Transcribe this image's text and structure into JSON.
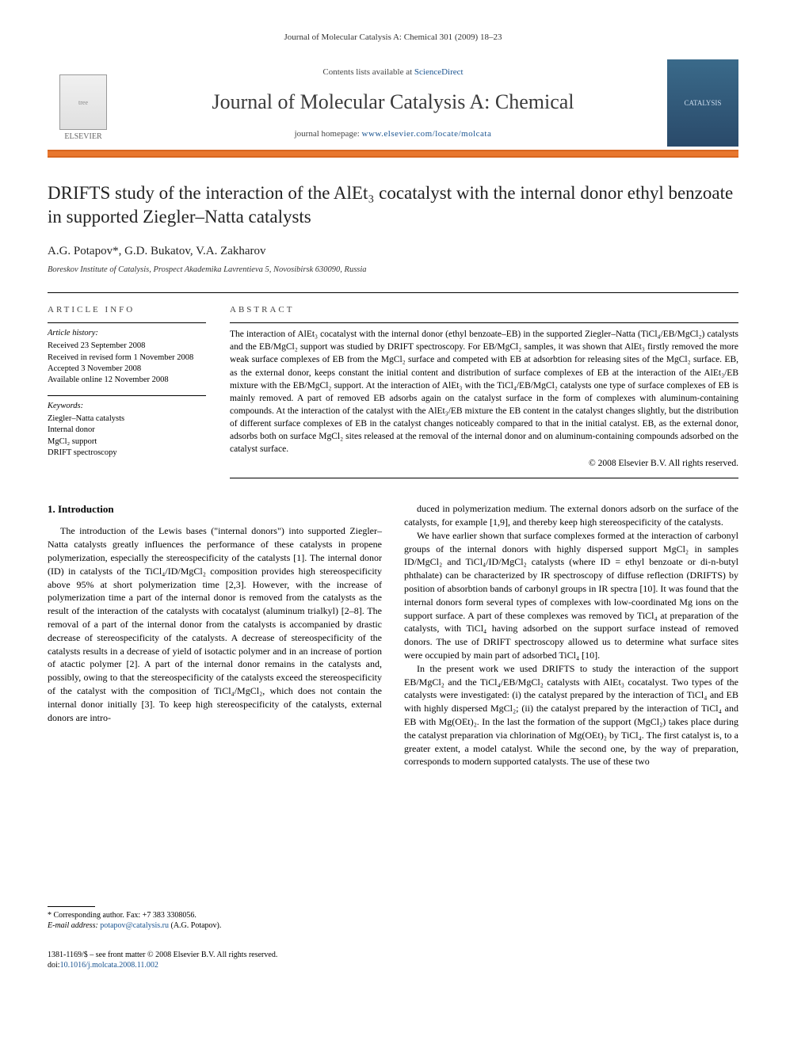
{
  "header": {
    "journal_ref": "Journal of Molecular Catalysis A: Chemical 301 (2009) 18–23",
    "contents_text": "Contents lists available at ",
    "contents_link": "ScienceDirect",
    "journal_name": "Journal of Molecular Catalysis A: Chemical",
    "homepage_label": "journal homepage: ",
    "homepage_url": "www.elsevier.com/locate/molcata",
    "publisher": "ELSEVIER",
    "cover_label": "CATALYSIS"
  },
  "article": {
    "title": "DRIFTS study of the interaction of the AlEt₃ cocatalyst with the internal donor ethyl benzoate in supported Ziegler–Natta catalysts",
    "authors": "A.G. Potapov*, G.D. Bukatov, V.A. Zakharov",
    "affiliation": "Boreskov Institute of Catalysis, Prospect Akademika Lavrentieva 5, Novosibirsk 630090, Russia"
  },
  "info": {
    "heading": "article info",
    "history_label": "Article history:",
    "history": [
      "Received 23 September 2008",
      "Received in revised form 1 November 2008",
      "Accepted 3 November 2008",
      "Available online 12 November 2008"
    ],
    "keywords_label": "Keywords:",
    "keywords": [
      "Ziegler–Natta catalysts",
      "Internal donor",
      "MgCl₂ support",
      "DRIFT spectroscopy"
    ]
  },
  "abstract": {
    "heading": "abstract",
    "text": "The interaction of AlEt₃ cocatalyst with the internal donor (ethyl benzoate–EB) in the supported Ziegler–Natta (TiCl₄/EB/MgCl₂) catalysts and the EB/MgCl₂ support was studied by DRIFT spectroscopy. For EB/MgCl₂ samples, it was shown that AlEt₃ firstly removed the more weak surface complexes of EB from the MgCl₂ surface and competed with EB at adsorbtion for releasing sites of the MgCl₂ surface. EB, as the external donor, keeps constant the initial content and distribution of surface complexes of EB at the interaction of the AlEt₃/EB mixture with the EB/MgCl₂ support. At the interaction of AlEt₃ with the TiCl₄/EB/MgCl₂ catalysts one type of surface complexes of EB is mainly removed. A part of removed EB adsorbs again on the catalyst surface in the form of complexes with aluminum-containing compounds. At the interaction of the catalyst with the AlEt₃/EB mixture the EB content in the catalyst changes slightly, but the distribution of different surface complexes of EB in the catalyst changes noticeably compared to that in the initial catalyst. EB, as the external donor, adsorbs both on surface MgCl₂ sites released at the removal of the internal donor and on aluminum-containing compounds adsorbed on the catalyst surface.",
    "copyright": "© 2008 Elsevier B.V. All rights reserved."
  },
  "body": {
    "section_number": "1.",
    "section_title": "Introduction",
    "col1_p1": "The introduction of the Lewis bases (\"internal donors\") into supported Ziegler–Natta catalysts greatly influences the performance of these catalysts in propene polymerization, especially the stereospecificity of the catalysts [1]. The internal donor (ID) in catalysts of the TiCl₄/ID/MgCl₂ composition provides high stereospecificity above 95% at short polymerization time [2,3]. However, with the increase of polymerization time a part of the internal donor is removed from the catalysts as the result of the interaction of the catalysts with cocatalyst (aluminum trialkyl) [2–8]. The removal of a part of the internal donor from the catalysts is accompanied by drastic decrease of stereospecificity of the catalysts. A decrease of stereospecificity of the catalysts results in a decrease of yield of isotactic polymer and in an increase of portion of atactic polymer [2]. A part of the internal donor remains in the catalysts and, possibly, owing to that the stereospecificity of the catalysts exceed the stereospecificity of the catalyst with the composition of TiCl₄/MgCl₂, which does not contain the internal donor initially [3]. To keep high stereospecificity of the catalysts, external donors are intro-",
    "col2_p1": "duced in polymerization medium. The external donors adsorb on the surface of the catalysts, for example [1,9], and thereby keep high stereospecificity of the catalysts.",
    "col2_p2": "We have earlier shown that surface complexes formed at the interaction of carbonyl groups of the internal donors with highly dispersed support MgCl₂ in samples ID/MgCl₂ and TiCl₄/ID/MgCl₂ catalysts (where ID = ethyl benzoate or di-n-butyl phthalate) can be characterized by IR spectroscopy of diffuse reflection (DRIFTS) by position of absorbtion bands of carbonyl groups in IR spectra [10]. It was found that the internal donors form several types of complexes with low-coordinated Mg ions on the support surface. A part of these complexes was removed by TiCl₄ at preparation of the catalysts, with TiCl₄ having adsorbed on the support surface instead of removed donors. The use of DRIFT spectroscopy allowed us to determine what surface sites were occupied by main part of adsorbed TiCl₄ [10].",
    "col2_p3": "In the present work we used DRIFTS to study the interaction of the support EB/MgCl₂ and the TiCl₄/EB/MgCl₂ catalysts with AlEt₃ cocatalyst. Two types of the catalysts were investigated: (i) the catalyst prepared by the interaction of TiCl₄ and EB with highly dispersed MgCl₂; (ii) the catalyst prepared by the interaction of TiCl₄ and EB with Mg(OEt)₂. In the last the formation of the support (MgCl₂) takes place during the catalyst preparation via chlorination of Mg(OEt)₂ by TiCl₄. The first catalyst is, to a greater extent, a model catalyst. While the second one, by the way of preparation, corresponds to modern supported catalysts. The use of these two"
  },
  "footnote": {
    "corr": "* Corresponding author. Fax: +7 383 3308056.",
    "email_label": "E-mail address: ",
    "email": "potapov@catalysis.ru",
    "email_suffix": " (A.G. Potapov)."
  },
  "footer": {
    "line1": "1381-1169/$ – see front matter © 2008 Elsevier B.V. All rights reserved.",
    "doi_label": "doi:",
    "doi": "10.1016/j.molcata.2008.11.002"
  },
  "refs": {
    "r1": "[1]",
    "r23": "[2,3]",
    "r2_8": "[2–8]",
    "r2": "[2]",
    "r3": "[3]",
    "r19": "[1,9]",
    "r10": "[10]"
  },
  "colors": {
    "orange_bar": "#e8772e",
    "link": "#1a5490"
  }
}
